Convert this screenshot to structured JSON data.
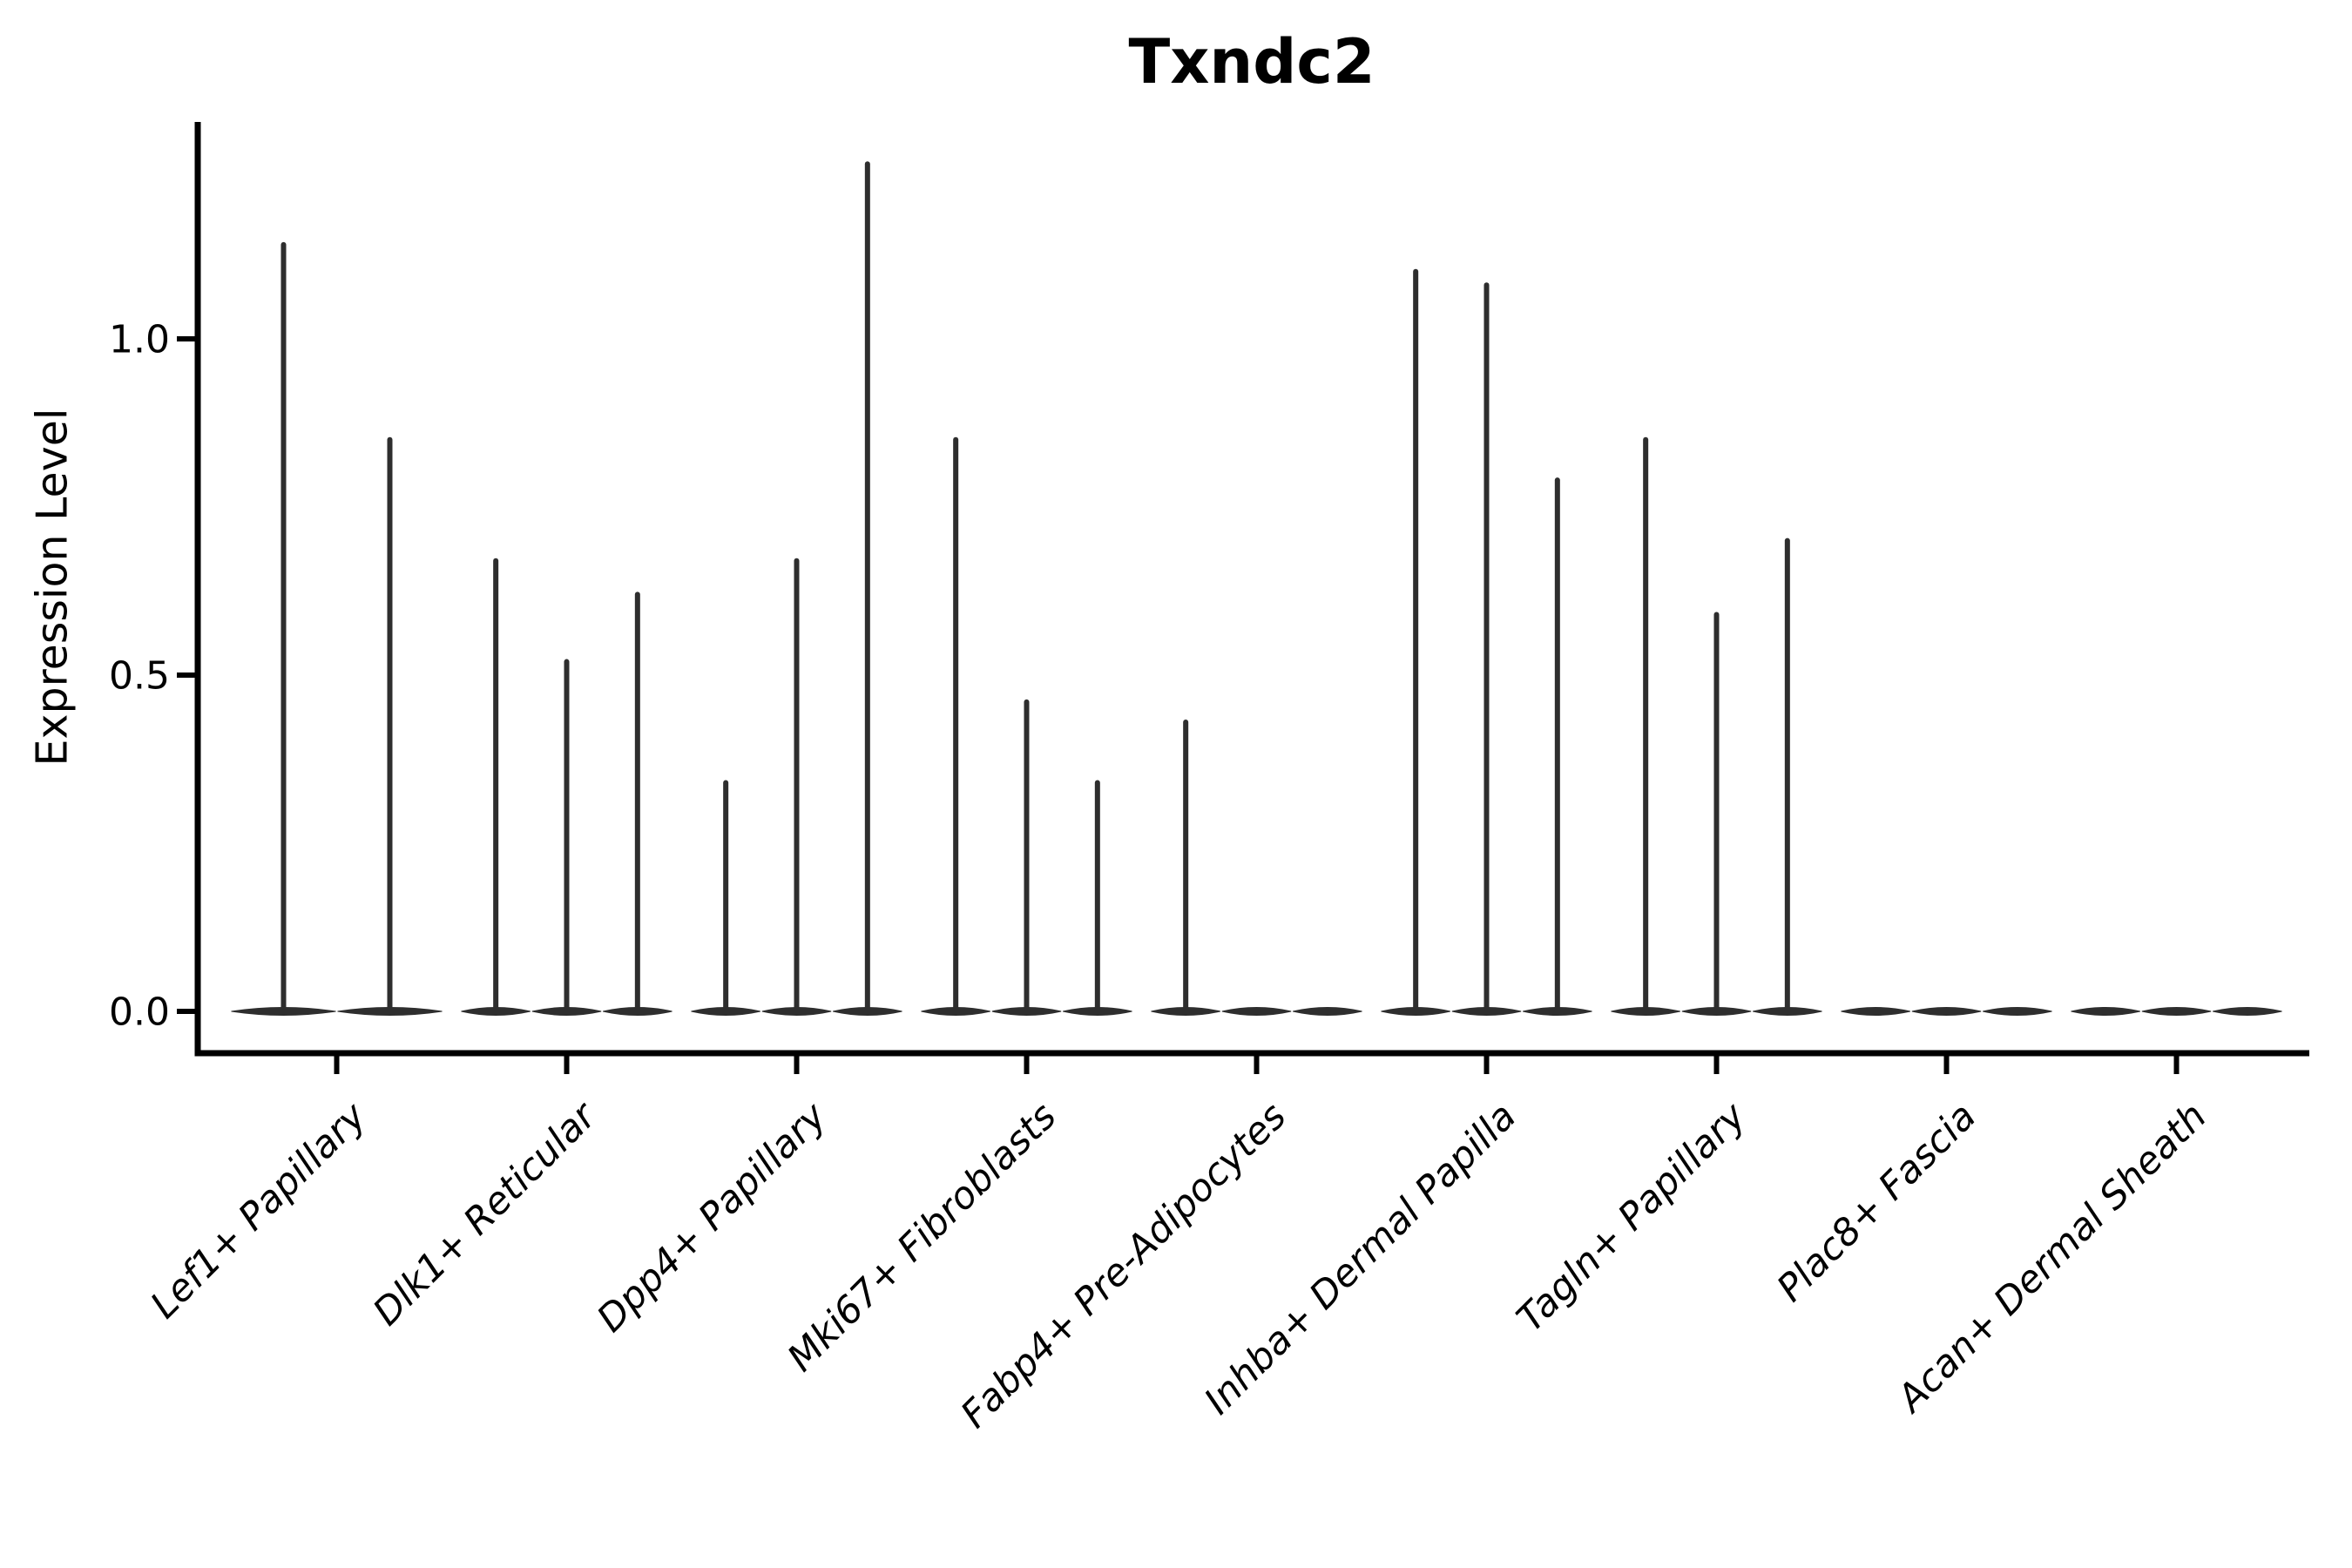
{
  "chart_data": {
    "type": "violin",
    "title": "Txndc2",
    "ylabel": "Expression Level",
    "xlabel": "",
    "yticks": [
      0.0,
      0.5,
      1.0
    ],
    "ylim": [
      0,
      1.32
    ],
    "grid": false,
    "legend": false,
    "violin_color": "#2e2e2e",
    "axis_color": "#000000",
    "groups": [
      {
        "label": "Lef1+ Papillary",
        "violin_maxima": [
          1.14,
          0.85
        ]
      },
      {
        "label": "Dlk1+ Reticular",
        "violin_maxima": [
          0.67,
          0.52,
          0.62
        ]
      },
      {
        "label": "Dpp4+ Papillary",
        "violin_maxima": [
          0.34,
          0.67,
          1.26
        ]
      },
      {
        "label": "Mki67+ Fibroblasts",
        "violin_maxima": [
          0.85,
          0.46,
          0.34
        ]
      },
      {
        "label": "Fabp4+ Pre-Adipocytes",
        "violin_maxima": [
          0.43,
          0.0,
          0.0
        ]
      },
      {
        "label": "Inhba+ Dermal Papilla",
        "violin_maxima": [
          1.1,
          1.08,
          0.79
        ]
      },
      {
        "label": "Tagln+ Papillary",
        "violin_maxima": [
          0.85,
          0.59,
          0.7
        ]
      },
      {
        "label": "Plac8+ Fascia",
        "violin_maxima": [
          0.0,
          0.0,
          0.0
        ]
      },
      {
        "label": "Acan+ Dermal Sheath",
        "violin_maxima": [
          0.0,
          0.0,
          0.0
        ]
      }
    ]
  }
}
